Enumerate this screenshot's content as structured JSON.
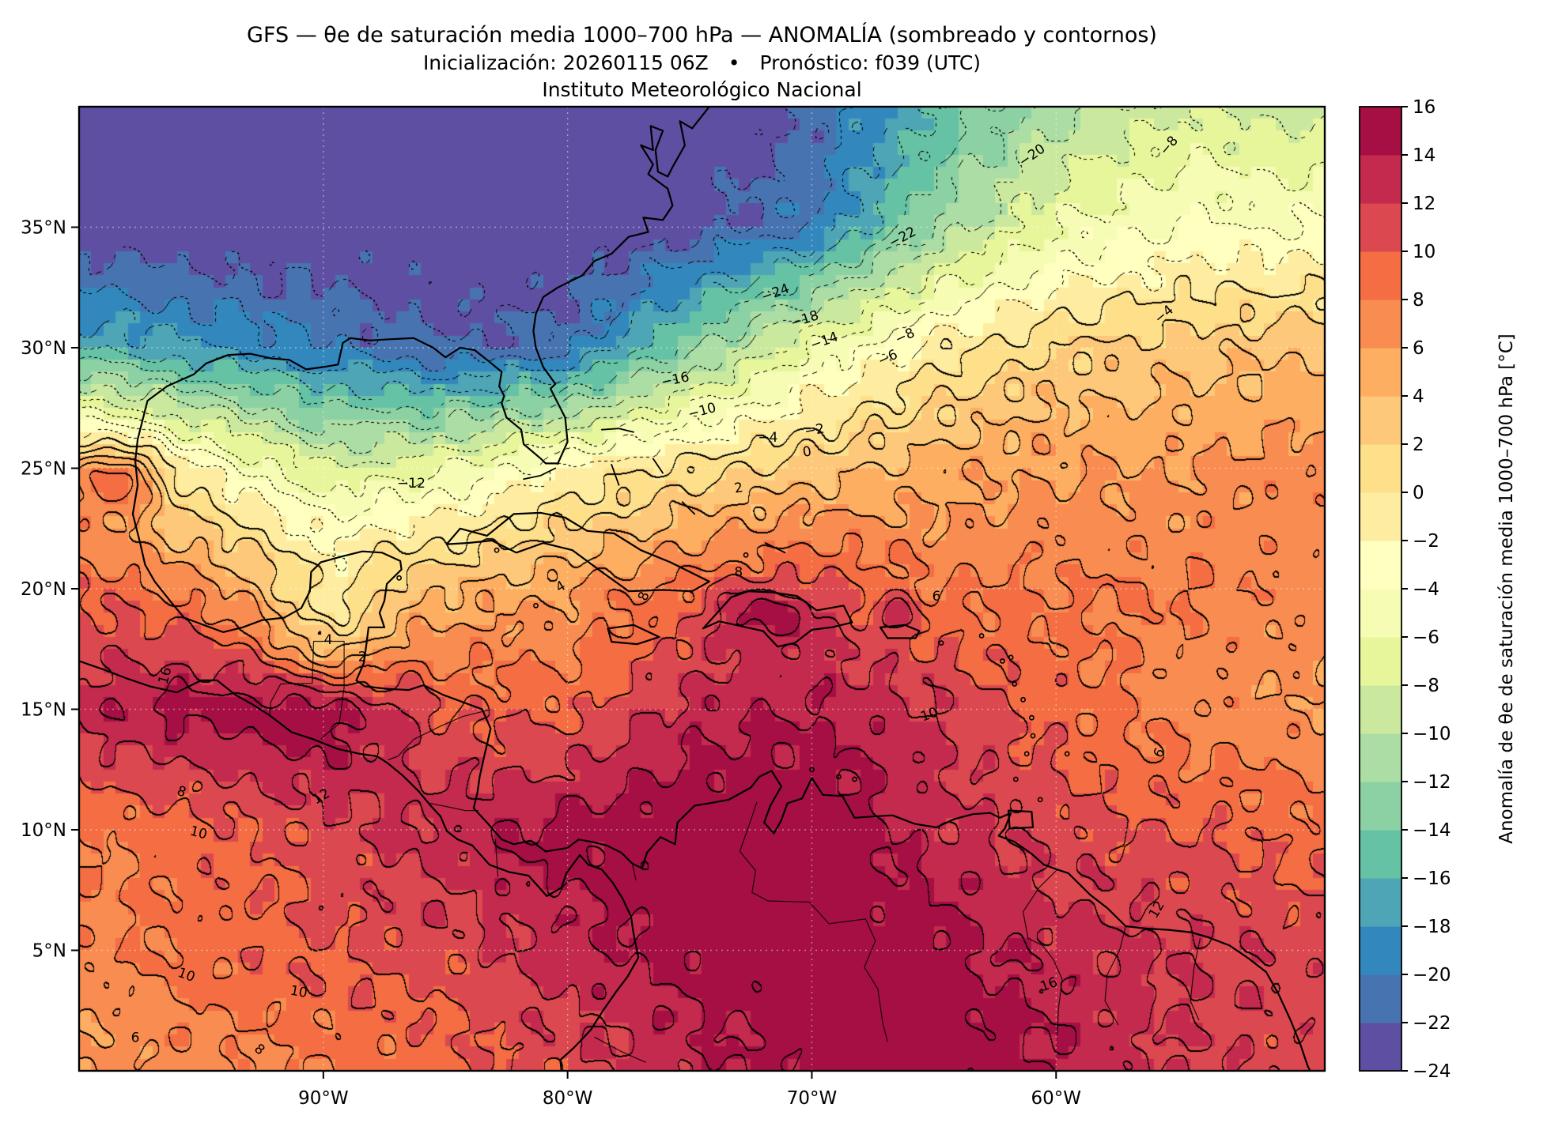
{
  "title": {
    "line1": "GFS — θe de saturación media 1000–700 hPa — ANOMALÍA (sombreado y contornos)",
    "line2": "Inicialización: 20260115 06Z  •  Pronóstico: f039 (UTC)",
    "line3": "Instituto Meteorológico Nacional"
  },
  "axes": {
    "x_ticks": [
      {
        "label": "90°W",
        "lon": -90
      },
      {
        "label": "80°W",
        "lon": -80
      },
      {
        "label": "70°W",
        "lon": -70
      },
      {
        "label": "60°W",
        "lon": -60
      }
    ],
    "y_ticks": [
      {
        "label": "5°N",
        "lat": 5
      },
      {
        "label": "10°N",
        "lat": 10
      },
      {
        "label": "15°N",
        "lat": 15
      },
      {
        "label": "20°N",
        "lat": 20
      },
      {
        "label": "25°N",
        "lat": 25
      },
      {
        "label": "30°N",
        "lat": 30
      },
      {
        "label": "35°N",
        "lat": 35
      }
    ]
  },
  "colorbar": {
    "label": "Anomalía de θe de saturación media 1000–700 hPa [°C]",
    "vmin": -24,
    "vmax": 16,
    "step": 2,
    "tick_labels": [
      "16",
      "14",
      "12",
      "10",
      "8",
      "6",
      "4",
      "2",
      "0",
      "−2",
      "−4",
      "−6",
      "−8",
      "−10",
      "−12",
      "−14",
      "−16",
      "−18",
      "−20",
      "−22",
      "−24"
    ],
    "colors": [
      "#5e4fa2",
      "#4873b1",
      "#3288bd",
      "#4da5b5",
      "#66c2a5",
      "#8cd1a4",
      "#abdda4",
      "#cae99f",
      "#e8f69b",
      "#f6fcb4",
      "#ffffbf",
      "#feeca1",
      "#fee08b",
      "#fdc87a",
      "#fdae61",
      "#f88c51",
      "#f46d43",
      "#dc484f",
      "#c32a4e",
      "#a50f44"
    ]
  },
  "chart_data": {
    "type": "heatmap",
    "title": "GFS — θe de saturación media 1000–700 hPa — ANOMALÍA (sombreado y contornos)",
    "units": "°C",
    "x_range": [
      -100,
      -49
    ],
    "y_range": [
      0,
      40
    ],
    "contour_interval": 2,
    "contour_levels": [
      -24,
      -22,
      -20,
      -18,
      -16,
      -14,
      -12,
      -10,
      -8,
      -6,
      -4,
      -2,
      0,
      2,
      4,
      6,
      8,
      10,
      12,
      14,
      16
    ],
    "negative_contour_style": "dotted",
    "positive_contour_style": "solid",
    "grid": {
      "lons": [
        -100,
        -95,
        -90,
        -85,
        -80,
        -75,
        -70,
        -65,
        -60,
        -55,
        -49
      ],
      "lats": [
        40,
        35,
        30,
        25,
        20,
        15,
        10,
        5,
        0
      ],
      "values": [
        [
          -24,
          -24,
          -24,
          -24,
          -24,
          -24,
          -22,
          -16,
          -11,
          -8,
          -9
        ],
        [
          -24,
          -24,
          -24,
          -24,
          -24,
          -23,
          -20,
          -12,
          -6,
          -4,
          -4
        ],
        [
          -16,
          -18,
          -20,
          -22,
          -21,
          -13,
          -6,
          -1,
          2,
          3,
          4
        ],
        [
          3,
          -2,
          -8,
          -6,
          -2,
          1,
          3,
          5,
          6,
          6,
          7
        ],
        [
          10,
          7,
          2,
          4,
          6,
          9,
          11,
          8,
          8,
          8,
          7
        ],
        [
          13,
          15,
          16,
          10,
          9,
          13,
          14,
          12,
          9,
          7,
          6
        ],
        [
          8,
          9,
          11,
          13,
          15,
          16,
          16,
          13,
          11,
          10,
          9
        ],
        [
          7,
          9,
          10,
          11,
          13,
          15,
          16,
          15,
          13,
          12,
          11
        ],
        [
          6,
          7,
          8,
          9,
          11,
          13,
          15,
          16,
          14,
          12,
          11
        ]
      ]
    },
    "contour_labels": [
      {
        "t": "−24",
        "lon": -71.5,
        "lat": 32.3,
        "rot": -20
      },
      {
        "t": "−22",
        "lon": -66.3,
        "lat": 34.6,
        "rot": -28
      },
      {
        "t": "−20",
        "lon": -61.0,
        "lat": 38.0,
        "rot": -35
      },
      {
        "t": "−18",
        "lon": -70.3,
        "lat": 31.2,
        "rot": -18
      },
      {
        "t": "−16",
        "lon": -75.6,
        "lat": 28.7,
        "rot": -12
      },
      {
        "t": "−14",
        "lon": -69.5,
        "lat": 30.3,
        "rot": -20
      },
      {
        "t": "−12",
        "lon": -86.4,
        "lat": 24.4,
        "rot": 0
      },
      {
        "t": "−10",
        "lon": -74.5,
        "lat": 27.4,
        "rot": -15
      },
      {
        "t": "−8",
        "lon": -66.2,
        "lat": 30.5,
        "rot": -25
      },
      {
        "t": "−8",
        "lon": -55.4,
        "lat": 38.4,
        "rot": -50
      },
      {
        "t": "−6",
        "lon": -66.9,
        "lat": 29.6,
        "rot": -25
      },
      {
        "t": "−4",
        "lon": -71.8,
        "lat": 26.3,
        "rot": 0
      },
      {
        "t": "−4",
        "lon": -55.6,
        "lat": 31.4,
        "rot": -40
      },
      {
        "t": "−2",
        "lon": -69.9,
        "lat": 26.6,
        "rot": -10
      },
      {
        "t": "0",
        "lon": -70.2,
        "lat": 25.7,
        "rot": -10
      },
      {
        "t": "2",
        "lon": -73.0,
        "lat": 24.2,
        "rot": -10
      },
      {
        "t": "2",
        "lon": -88.4,
        "lat": 17.2,
        "rot": 0
      },
      {
        "t": "4",
        "lon": -80.3,
        "lat": 20.1,
        "rot": -30
      },
      {
        "t": "4",
        "lon": -89.8,
        "lat": 17.9,
        "rot": 0
      },
      {
        "t": "6",
        "lon": -64.9,
        "lat": 19.7,
        "rot": 0
      },
      {
        "t": "6",
        "lon": -55.8,
        "lat": 13.2,
        "rot": -60
      },
      {
        "t": "8",
        "lon": -76.9,
        "lat": 19.7,
        "rot": -70
      },
      {
        "t": "8",
        "lon": -73.0,
        "lat": 20.7,
        "rot": 0
      },
      {
        "t": "8",
        "lon": -95.8,
        "lat": 11.6,
        "rot": 20
      },
      {
        "t": "10",
        "lon": -65.2,
        "lat": 14.8,
        "rot": -20
      },
      {
        "t": "10",
        "lon": -95.1,
        "lat": 9.9,
        "rot": 15
      },
      {
        "t": "10",
        "lon": -95.6,
        "lat": 4.0,
        "rot": 20
      },
      {
        "t": "10",
        "lon": -91.0,
        "lat": 3.3,
        "rot": 10
      },
      {
        "t": "12",
        "lon": -90.1,
        "lat": 11.4,
        "rot": -30
      },
      {
        "t": "12",
        "lon": -55.9,
        "lat": 6.7,
        "rot": -60
      },
      {
        "t": "16",
        "lon": -96.5,
        "lat": 16.4,
        "rot": -75
      },
      {
        "t": "16",
        "lon": -60.3,
        "lat": 3.6,
        "rot": -20
      },
      {
        "t": "6",
        "lon": -97.7,
        "lat": 1.4,
        "rot": 0
      },
      {
        "t": "8",
        "lon": -92.6,
        "lat": 0.9,
        "rot": 40
      }
    ]
  }
}
